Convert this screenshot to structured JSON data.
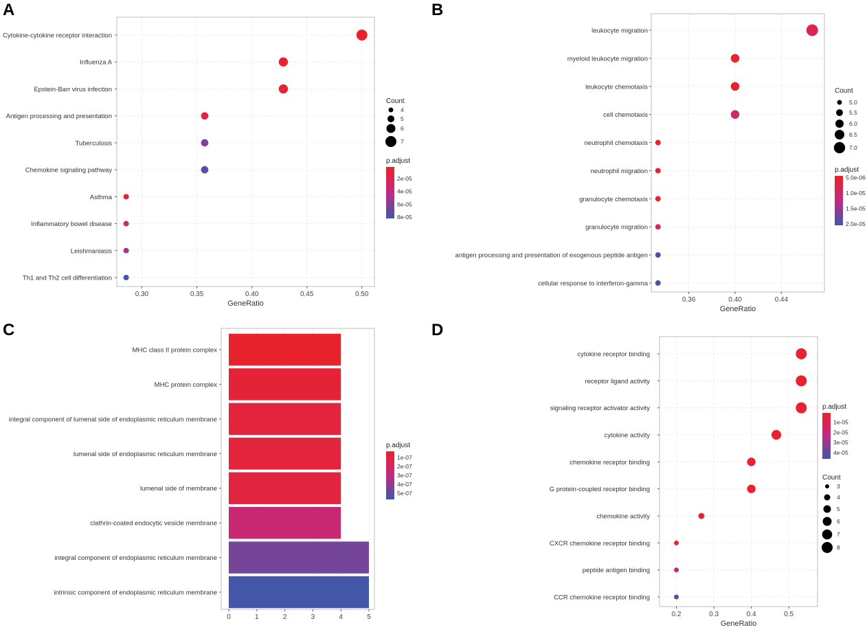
{
  "colors": {
    "low": "#ec2227",
    "mid": "#c12a84",
    "high": "#3f58a8"
  },
  "chart_data": [
    {
      "panel": "A",
      "type": "scatter",
      "xlabel": "GeneRatio",
      "xticks": [
        0.3,
        0.35,
        0.4,
        0.45,
        0.5
      ],
      "xtick_labels": [
        "0.30",
        "0.35",
        "0.40",
        "0.45",
        "0.50"
      ],
      "categories": [
        "Cytokine-cytokine receptor interaction",
        "Influenza A",
        "Epstein-Barr virus infection",
        "Antigen processing and presentation",
        "Tuberculosis",
        "Chemokine signaling pathway",
        "Asthma",
        "Inflammatory bowel disease",
        "Leishmaniasis",
        "Th1 and Th2 cell differentiation"
      ],
      "gene_ratio": [
        0.5,
        0.4286,
        0.4286,
        0.3571,
        0.3571,
        0.3571,
        0.2857,
        0.2857,
        0.2857,
        0.2857
      ],
      "count": [
        7,
        6,
        6,
        5,
        5,
        5,
        4,
        4,
        4,
        4
      ],
      "p_adjust": [
        5e-06,
        8e-06,
        8e-06,
        1e-05,
        6.2e-05,
        7.5e-05,
        8e-06,
        3e-05,
        5e-05,
        8e-05
      ],
      "size_legend": {
        "title": "Count",
        "values": [
          4,
          5,
          6,
          7
        ],
        "labels": [
          "4",
          "5",
          "6",
          "7"
        ]
      },
      "color_legend": {
        "title": "p.adjust",
        "range": [
          2e-06,
          8.2e-05
        ],
        "ticks": [
          2e-05,
          4e-05,
          6e-05,
          8e-05
        ],
        "labels": [
          "2e-05",
          "4e-05",
          "6e-05",
          "8e-05"
        ]
      }
    },
    {
      "panel": "B",
      "type": "scatter",
      "xlabel": "GeneRatio",
      "xticks": [
        0.36,
        0.4,
        0.44
      ],
      "xtick_labels": [
        "0.36",
        "0.40",
        "0.44"
      ],
      "categories": [
        "leukocyte migration",
        "myeloid leukocyte migration",
        "leukocyte chemotaxis",
        "cell chemotaxis",
        "neutrophil chemotaxis",
        "neutrophil migration",
        "granulocyte chemotaxis",
        "granulocyte migration",
        "antigen processing and presentation of exogenous peptide antigen",
        "cellular response to interferon-gamma"
      ],
      "gene_ratio": [
        0.4667,
        0.4,
        0.4,
        0.4,
        0.3333,
        0.3333,
        0.3333,
        0.3333,
        0.3333,
        0.3333
      ],
      "count": [
        7,
        6,
        6,
        6,
        5,
        5,
        5,
        5,
        5,
        5
      ],
      "p_adjust": [
        8.5e-06,
        5e-06,
        5e-06,
        1.05e-05,
        5e-06,
        5e-06,
        6e-06,
        8e-06,
        2e-05,
        2e-05
      ],
      "size_legend": {
        "title": "Count",
        "values": [
          5.0,
          5.5,
          6.0,
          6.5,
          7.0
        ],
        "labels": [
          "5.0",
          "5.5",
          "6.0",
          "6.5",
          "7.0"
        ]
      },
      "color_legend": {
        "title": "p.adjust",
        "range": [
          4.5e-06,
          2.05e-05
        ],
        "ticks": [
          5e-06,
          1e-05,
          1.5e-05,
          2e-05
        ],
        "labels": [
          "5.0e-06",
          "1.0e-05",
          "1.5e-05",
          "2.0e-05"
        ]
      }
    },
    {
      "panel": "C",
      "type": "bar",
      "xlabel": "",
      "xticks": [
        0,
        1,
        2,
        3,
        4,
        5
      ],
      "xtick_labels": [
        "0",
        "1",
        "2",
        "3",
        "4",
        "5"
      ],
      "categories": [
        "MHC class II protein complex",
        "MHC protein complex",
        "integral component of lumenal side of endoplasmic reticulum membrane",
        "lumenal side of endoplasmic reticulum membrane",
        "lumenal side of membrane",
        "clathrin-coated endocytic vesicle membrane",
        "integral component of endoplasmic reticulum membrane",
        "intrinsic component of endoplasmic reticulum membrane"
      ],
      "values": [
        4,
        4,
        4,
        4,
        4,
        4,
        5,
        5
      ],
      "p_adjust": [
        5e-08,
        8e-08,
        9e-08,
        9e-08,
        1e-07,
        2.5e-07,
        4.6e-07,
        5.6e-07
      ],
      "color_legend": {
        "title": "p.adjust",
        "range": [
          3e-08,
          5.7e-07
        ],
        "ticks": [
          1e-07,
          2e-07,
          3e-07,
          4e-07,
          5e-07
        ],
        "labels": [
          "1e-07",
          "2e-07",
          "3e-07",
          "4e-07",
          "5e-07"
        ]
      }
    },
    {
      "panel": "D",
      "type": "scatter",
      "xlabel": "GeneRatio",
      "xticks": [
        0.2,
        0.3,
        0.4,
        0.5
      ],
      "xtick_labels": [
        "0.2",
        "0.3",
        "0.4",
        "0.5"
      ],
      "categories": [
        "cytokine receptor binding",
        "receptor ligand activity",
        "signaling receptor activator activity",
        "cytokine activity",
        "chemokine receptor binding",
        "G protein-coupled receptor binding",
        "chemokine activity",
        "CXCR chemokine receptor binding",
        "peptide antigen binding",
        "CCR chemokine receptor binding"
      ],
      "gene_ratio": [
        0.5333,
        0.5333,
        0.5333,
        0.4667,
        0.4,
        0.4,
        0.2667,
        0.2,
        0.2,
        0.2
      ],
      "count": [
        8,
        8,
        8,
        7,
        6,
        6,
        4,
        3,
        3,
        3
      ],
      "p_adjust": [
        3e-06,
        3e-06,
        3e-06,
        3e-06,
        3e-06,
        3e-06,
        3e-06,
        4e-06,
        2e-05,
        4.5e-05
      ],
      "size_legend": {
        "title": "Count",
        "values": [
          3,
          4,
          5,
          6,
          7,
          8
        ],
        "labels": [
          "3",
          "4",
          "5",
          "6",
          "7",
          "8"
        ]
      },
      "color_legend": {
        "title": "p.adjust",
        "range": [
          1e-06,
          4.6e-05
        ],
        "ticks": [
          1e-05,
          2e-05,
          3e-05,
          4e-05
        ],
        "labels": [
          "1e-05",
          "2e-05",
          "3e-05",
          "4e-05"
        ]
      }
    }
  ]
}
